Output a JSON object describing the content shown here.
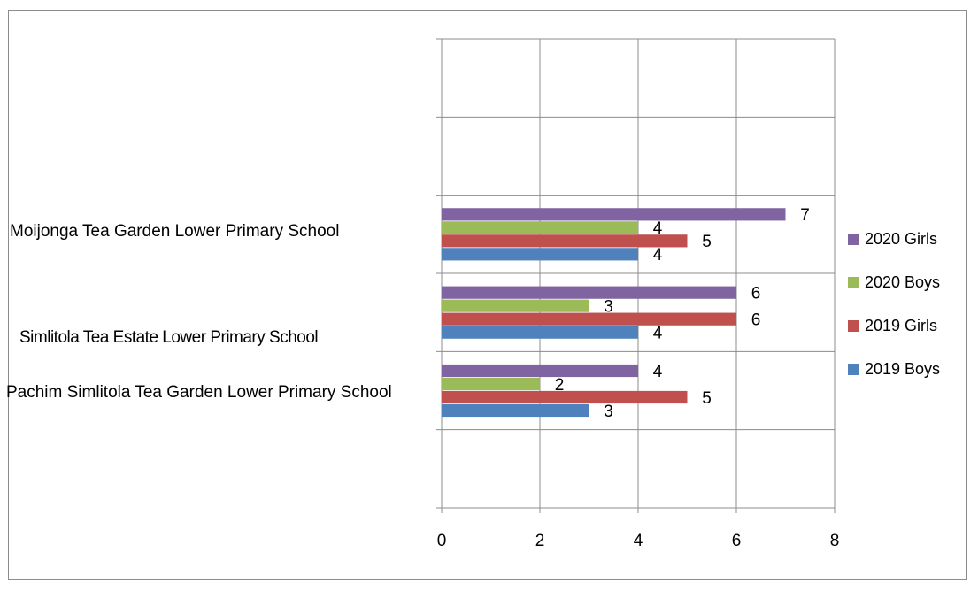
{
  "chart_data": {
    "type": "bar",
    "orientation": "horizontal",
    "categories": [
      "Pachim Simlitola Tea Garden Lower Primary School",
      "Simlitola Tea Estate Lower Primary School",
      "Moijonga Tea Garden Lower Primary School"
    ],
    "series": [
      {
        "name": "2019 Boys",
        "color": "#4f81bd",
        "values": [
          3,
          4,
          4
        ]
      },
      {
        "name": "2019 Girls",
        "color": "#c0504d",
        "values": [
          5,
          6,
          5
        ]
      },
      {
        "name": "2020 Boys",
        "color": "#9bbb59",
        "values": [
          2,
          3,
          4
        ]
      },
      {
        "name": "2020 Girls",
        "color": "#8064a2",
        "values": [
          4,
          6,
          7
        ]
      }
    ],
    "xlim": [
      0,
      8
    ],
    "xticks": [
      0,
      2,
      4,
      6,
      8
    ],
    "grid": true,
    "legend": "right",
    "data_labels": true
  },
  "labels": {
    "cat_top": "Moijonga Tea Garden Lower Primary School",
    "cat_mid": "Simlitola Tea Estate Lower Primary School",
    "cat_bottom": "Pachim Simlitola Tea Garden Lower Primary School"
  },
  "legend_items": [
    "2020 Girls",
    "2020 Boys",
    "2019 Girls",
    "2019 Boys"
  ]
}
